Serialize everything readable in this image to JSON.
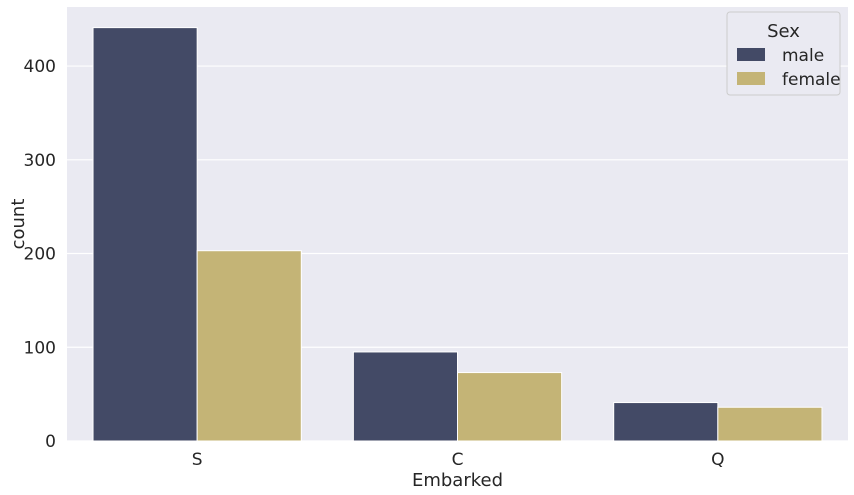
{
  "chart_data": {
    "type": "bar",
    "categories": [
      "S",
      "C",
      "Q"
    ],
    "series": [
      {
        "name": "male",
        "values": [
          441,
          95,
          41
        ],
        "color": "#434a66"
      },
      {
        "name": "female",
        "values": [
          203,
          73,
          36
        ],
        "color": "#c4b476"
      }
    ],
    "xlabel": "Embarked",
    "ylabel": "count",
    "ylim": [
      0,
      463
    ],
    "yticks": [
      0,
      100,
      200,
      300,
      400
    ],
    "legend": {
      "title": "Sex",
      "placement": "top-right"
    },
    "grid": true,
    "background": "#eaeaf2"
  }
}
